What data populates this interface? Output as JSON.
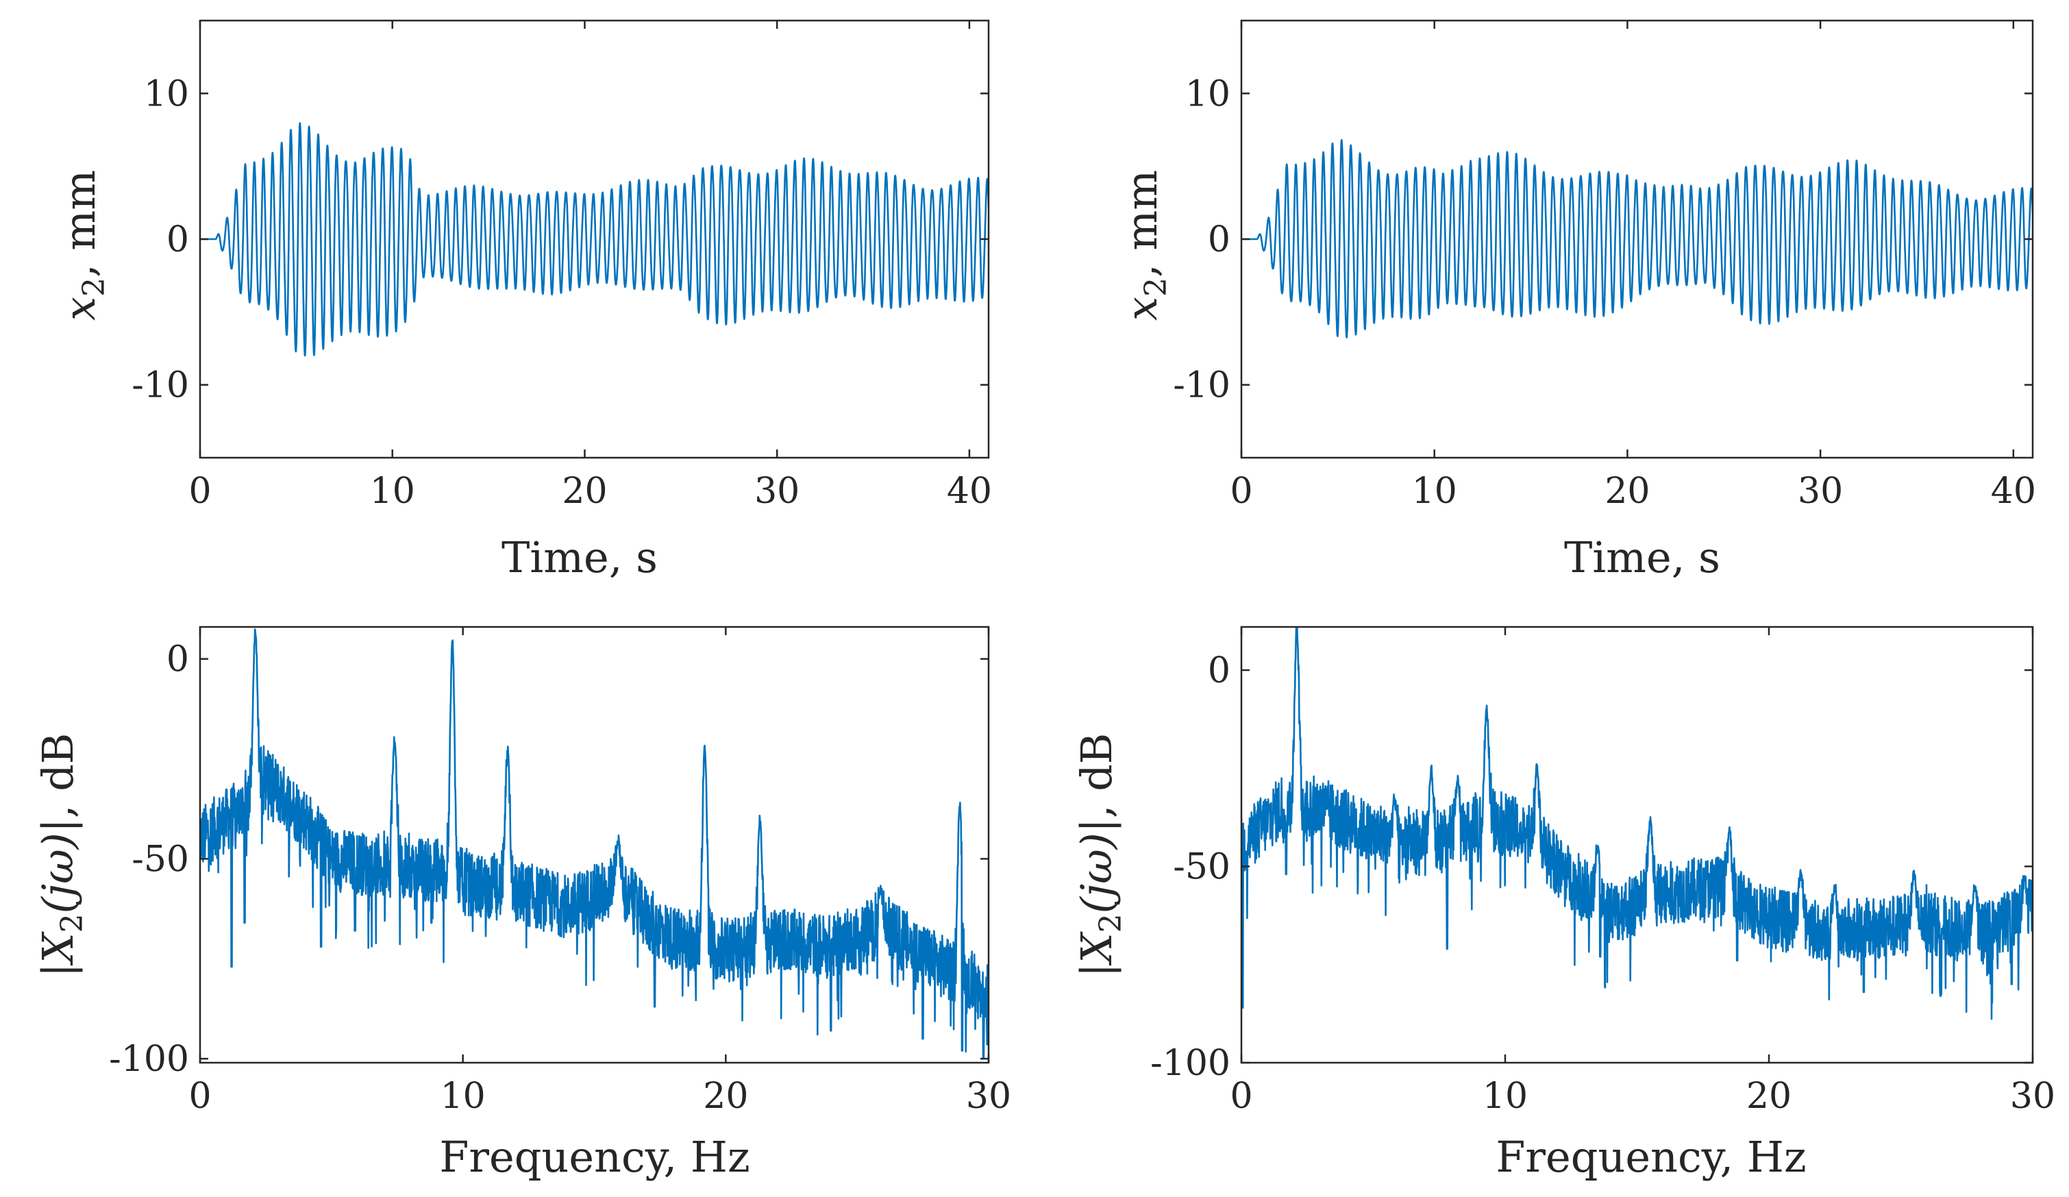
{
  "chart_data": [
    {
      "id": "time-left",
      "type": "line",
      "xlabel": "Time, s",
      "ylabel": {
        "var": "x",
        "sub": "2",
        "unit": ", mm"
      },
      "xlim": [
        0,
        41
      ],
      "ylim": [
        -15,
        15
      ],
      "xticks": [
        0,
        10,
        20,
        30,
        40
      ],
      "xtick_labels": [
        "0",
        "10",
        "20",
        "30",
        "40"
      ],
      "yticks": [
        -10,
        0,
        10
      ],
      "ytick_labels": [
        "-10",
        "0",
        "10"
      ],
      "color": "#0072BD",
      "signal": {
        "kind": "oscillation",
        "frequency_hz": 2.1,
        "start_s": 0.8,
        "envelope_mm": [
          [
            0.8,
            0
          ],
          [
            1.5,
            1.5
          ],
          [
            2.3,
            4.8
          ],
          [
            4,
            6
          ],
          [
            5,
            7.3
          ],
          [
            6,
            7.2
          ],
          [
            8,
            6.2
          ],
          [
            10.5,
            5.8
          ],
          [
            11,
            5.2
          ],
          [
            11.5,
            3.0
          ],
          [
            14,
            3.2
          ],
          [
            16,
            3.5
          ],
          [
            19,
            3.2
          ],
          [
            21,
            3.3
          ],
          [
            23,
            3.5
          ],
          [
            25,
            3.8
          ],
          [
            26,
            5.0
          ],
          [
            29,
            5.1
          ],
          [
            32,
            4.8
          ],
          [
            36,
            4.2
          ],
          [
            41,
            3.8
          ]
        ]
      }
    },
    {
      "id": "time-right",
      "type": "line",
      "xlabel": "Time, s",
      "ylabel": {
        "var": "x",
        "sub": "2",
        "unit": ", mm"
      },
      "xlim": [
        0,
        41
      ],
      "ylim": [
        -15,
        15
      ],
      "xticks": [
        0,
        10,
        20,
        30,
        40
      ],
      "xtick_labels": [
        "0",
        "10",
        "20",
        "30",
        "40"
      ],
      "yticks": [
        -10,
        0,
        10
      ],
      "ytick_labels": [
        "-10",
        "0",
        "10"
      ],
      "color": "#0072BD",
      "signal": {
        "kind": "oscillation",
        "frequency_hz": 2.1,
        "start_s": 0.8,
        "envelope_mm": [
          [
            0.8,
            0
          ],
          [
            1.5,
            1.5
          ],
          [
            2.3,
            4.8
          ],
          [
            4,
            5.5
          ],
          [
            5,
            6.3
          ],
          [
            7,
            5.5
          ],
          [
            9,
            5.0
          ],
          [
            10.5,
            4.2
          ],
          [
            12,
            5.5
          ],
          [
            14,
            5.2
          ],
          [
            16,
            4.8
          ],
          [
            18,
            4.6
          ],
          [
            20,
            4.6
          ],
          [
            22,
            3.2
          ],
          [
            24,
            3.2
          ],
          [
            26,
            5.1
          ],
          [
            29,
            4.9
          ],
          [
            32,
            4.7
          ],
          [
            35,
            3.8
          ],
          [
            38,
            3.2
          ],
          [
            41,
            3.2
          ]
        ]
      }
    },
    {
      "id": "freq-left",
      "type": "line",
      "xlabel": "Frequency, Hz",
      "ylabel": {
        "var": "|X",
        "sub": "2",
        "mid": "(jω)|",
        "unit": ", dB"
      },
      "xlim": [
        0,
        30
      ],
      "ylim": [
        -101,
        8
      ],
      "xticks": [
        0,
        10,
        20,
        30
      ],
      "xtick_labels": [
        "0",
        "10",
        "20",
        "30"
      ],
      "yticks": [
        -100,
        -50,
        0
      ],
      "ytick_labels": [
        "-100",
        "-50",
        "0"
      ],
      "color": "#0072BD",
      "spectrum": {
        "baseline_db": [
          [
            0,
            -45
          ],
          [
            1.5,
            -38
          ],
          [
            2.5,
            -30
          ],
          [
            4,
            -40
          ],
          [
            5,
            -50
          ],
          [
            7,
            -52
          ],
          [
            9,
            -53
          ],
          [
            10,
            -56
          ],
          [
            12,
            -58
          ],
          [
            14,
            -62
          ],
          [
            16,
            -57
          ],
          [
            17,
            -65
          ],
          [
            18,
            -70
          ],
          [
            20,
            -73
          ],
          [
            22,
            -70
          ],
          [
            24,
            -72
          ],
          [
            26,
            -67
          ],
          [
            28,
            -76
          ],
          [
            30,
            -84
          ]
        ],
        "noise_db": 8,
        "peaks": [
          [
            2.1,
            7
          ],
          [
            7.4,
            -20
          ],
          [
            9.6,
            4
          ],
          [
            11.7,
            -23
          ],
          [
            15.9,
            -45
          ],
          [
            19.2,
            -22
          ],
          [
            21.3,
            -40
          ],
          [
            25.9,
            -58
          ],
          [
            28.9,
            -36
          ]
        ],
        "dips": [
          [
            1.2,
            -77
          ],
          [
            1.7,
            -66
          ],
          [
            4.6,
            -72
          ],
          [
            5.9,
            -68
          ],
          [
            8.8,
            -66
          ],
          [
            17.3,
            -87
          ],
          [
            24.0,
            -93
          ],
          [
            27.5,
            -95
          ],
          [
            29.0,
            -98
          ],
          [
            29.8,
            -100
          ]
        ]
      }
    },
    {
      "id": "freq-right",
      "type": "line",
      "xlabel": "Frequency, Hz",
      "ylabel": {
        "var": "|X",
        "sub": "2",
        "mid": "(jω)|",
        "unit": ", dB"
      },
      "xlim": [
        0,
        30
      ],
      "ylim": [
        -100,
        11
      ],
      "xticks": [
        0,
        10,
        20,
        30
      ],
      "xtick_labels": [
        "0",
        "10",
        "20",
        "30"
      ],
      "yticks": [
        -100,
        -50,
        0
      ],
      "ytick_labels": [
        "-100",
        "-50",
        "0"
      ],
      "color": "#0072BD",
      "spectrum": {
        "baseline_db": [
          [
            0,
            -45
          ],
          [
            1.5,
            -35
          ],
          [
            3,
            -35
          ],
          [
            5,
            -42
          ],
          [
            7,
            -45
          ],
          [
            8.5,
            -42
          ],
          [
            9.5,
            -38
          ],
          [
            11,
            -42
          ],
          [
            12,
            -50
          ],
          [
            14,
            -62
          ],
          [
            16,
            -57
          ],
          [
            18,
            -55
          ],
          [
            20,
            -63
          ],
          [
            22,
            -66
          ],
          [
            24,
            -66
          ],
          [
            26,
            -64
          ],
          [
            28,
            -68
          ],
          [
            30,
            -60
          ]
        ],
        "noise_db": 8,
        "peaks": [
          [
            2.1,
            11
          ],
          [
            5.8,
            -33
          ],
          [
            7.2,
            -25
          ],
          [
            8.2,
            -28
          ],
          [
            9.3,
            -10
          ],
          [
            11.2,
            -25
          ],
          [
            13.5,
            -45
          ],
          [
            15.5,
            -38
          ],
          [
            18.5,
            -40
          ],
          [
            21.2,
            -52
          ],
          [
            22.5,
            -55
          ],
          [
            25.5,
            -52
          ],
          [
            27.8,
            -55
          ],
          [
            29.7,
            -53
          ]
        ],
        "dips": [
          [
            0.05,
            -86
          ],
          [
            1.7,
            -52
          ],
          [
            7.8,
            -71
          ],
          [
            13.6,
            -73
          ],
          [
            18.8,
            -74
          ],
          [
            23.6,
            -82
          ],
          [
            26.5,
            -83
          ],
          [
            29.2,
            -80
          ]
        ]
      }
    }
  ]
}
